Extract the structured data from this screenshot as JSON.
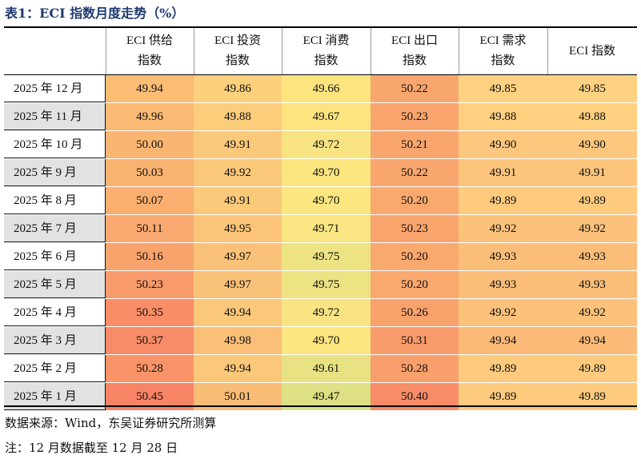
{
  "title": "表1：ECI 指数月度走势（%）",
  "columns": [
    {
      "line1": "ECI 供给",
      "line2": "指数"
    },
    {
      "line1": "ECI 投资",
      "line2": "指数"
    },
    {
      "line1": "ECI 消费",
      "line2": "指数"
    },
    {
      "line1": "ECI 出口",
      "line2": "指数"
    },
    {
      "line1": "ECI 需求",
      "line2": "指数"
    },
    {
      "line1": "ECI 指数",
      "line2": ""
    }
  ],
  "rows": [
    {
      "label": "2025 年 12 月",
      "values": [
        "49.94",
        "49.86",
        "49.66",
        "50.22",
        "49.85",
        "49.85"
      ]
    },
    {
      "label": "2025 年 11 月",
      "values": [
        "49.96",
        "49.88",
        "49.67",
        "50.23",
        "49.88",
        "49.88"
      ]
    },
    {
      "label": "2025 年 10 月",
      "values": [
        "50.00",
        "49.91",
        "49.72",
        "50.21",
        "49.90",
        "49.90"
      ]
    },
    {
      "label": "2025 年 9 月",
      "values": [
        "50.03",
        "49.92",
        "49.70",
        "50.22",
        "49.91",
        "49.91"
      ]
    },
    {
      "label": "2025 年 8 月",
      "values": [
        "50.07",
        "49.91",
        "49.70",
        "50.20",
        "49.89",
        "49.89"
      ]
    },
    {
      "label": "2025 年 7 月",
      "values": [
        "50.11",
        "49.95",
        "49.71",
        "50.23",
        "49.92",
        "49.92"
      ]
    },
    {
      "label": "2025 年 6 月",
      "values": [
        "50.16",
        "49.97",
        "49.75",
        "50.20",
        "49.93",
        "49.93"
      ]
    },
    {
      "label": "2025 年 5 月",
      "values": [
        "50.23",
        "49.97",
        "49.75",
        "50.20",
        "49.93",
        "49.93"
      ]
    },
    {
      "label": "2025 年 4 月",
      "values": [
        "50.35",
        "49.94",
        "49.72",
        "50.26",
        "49.92",
        "49.92"
      ]
    },
    {
      "label": "2025 年 3 月",
      "values": [
        "50.37",
        "49.98",
        "49.70",
        "50.31",
        "49.94",
        "49.94"
      ]
    },
    {
      "label": "2025 年 2 月",
      "values": [
        "50.28",
        "49.94",
        "49.61",
        "50.28",
        "49.89",
        "49.89"
      ]
    },
    {
      "label": "2025 年 1 月",
      "values": [
        "50.45",
        "50.01",
        "49.47",
        "50.40",
        "49.89",
        "49.89"
      ]
    }
  ],
  "cell_colors": [
    [
      "#fbbc74",
      "#fdd07c",
      "#fde47f",
      "#f9a66e",
      "#fed281",
      "#fed281"
    ],
    [
      "#fbba73",
      "#fccd7b",
      "#fde47f",
      "#f9a56d",
      "#fed080",
      "#fed080"
    ],
    [
      "#fab572",
      "#fbc97a",
      "#f8e482",
      "#f9a66e",
      "#fdc87d",
      "#fdc87d"
    ],
    [
      "#fab271",
      "#fbc87a",
      "#fbe680",
      "#f9a66e",
      "#fdc57c",
      "#fdc57c"
    ],
    [
      "#faae70",
      "#fbc97a",
      "#fbe680",
      "#f9a86e",
      "#fecb7e",
      "#fecb7e"
    ],
    [
      "#f9a96f",
      "#fbc479",
      "#f9e581",
      "#f9a56d",
      "#fcc27b",
      "#fcc27b"
    ],
    [
      "#f9a36d",
      "#fac278",
      "#ede383",
      "#f9a86e",
      "#fbbe79",
      "#fbbe79"
    ],
    [
      "#f99a6b",
      "#fac278",
      "#ede383",
      "#f9a86e",
      "#fbbe79",
      "#fbbe79"
    ],
    [
      "#f88d68",
      "#fbc779",
      "#f8e482",
      "#f9a26c",
      "#fcc27b",
      "#fcc27b"
    ],
    [
      "#f88b68",
      "#fac078",
      "#fbe680",
      "#f89b6b",
      "#fbba77",
      "#fbba77"
    ],
    [
      "#f99468",
      "#fbc779",
      "#e8e283",
      "#f99f6b",
      "#fecb7e",
      "#fecb7e"
    ],
    [
      "#f88466",
      "#f9bc77",
      "#dee084",
      "#f88c68",
      "#fecb7e",
      "#fecb7e"
    ]
  ],
  "notes": {
    "source": "数据来源：Wind，东吴证券研究所测算",
    "remark": "注：12 月数据截至 12 月 28 日"
  }
}
